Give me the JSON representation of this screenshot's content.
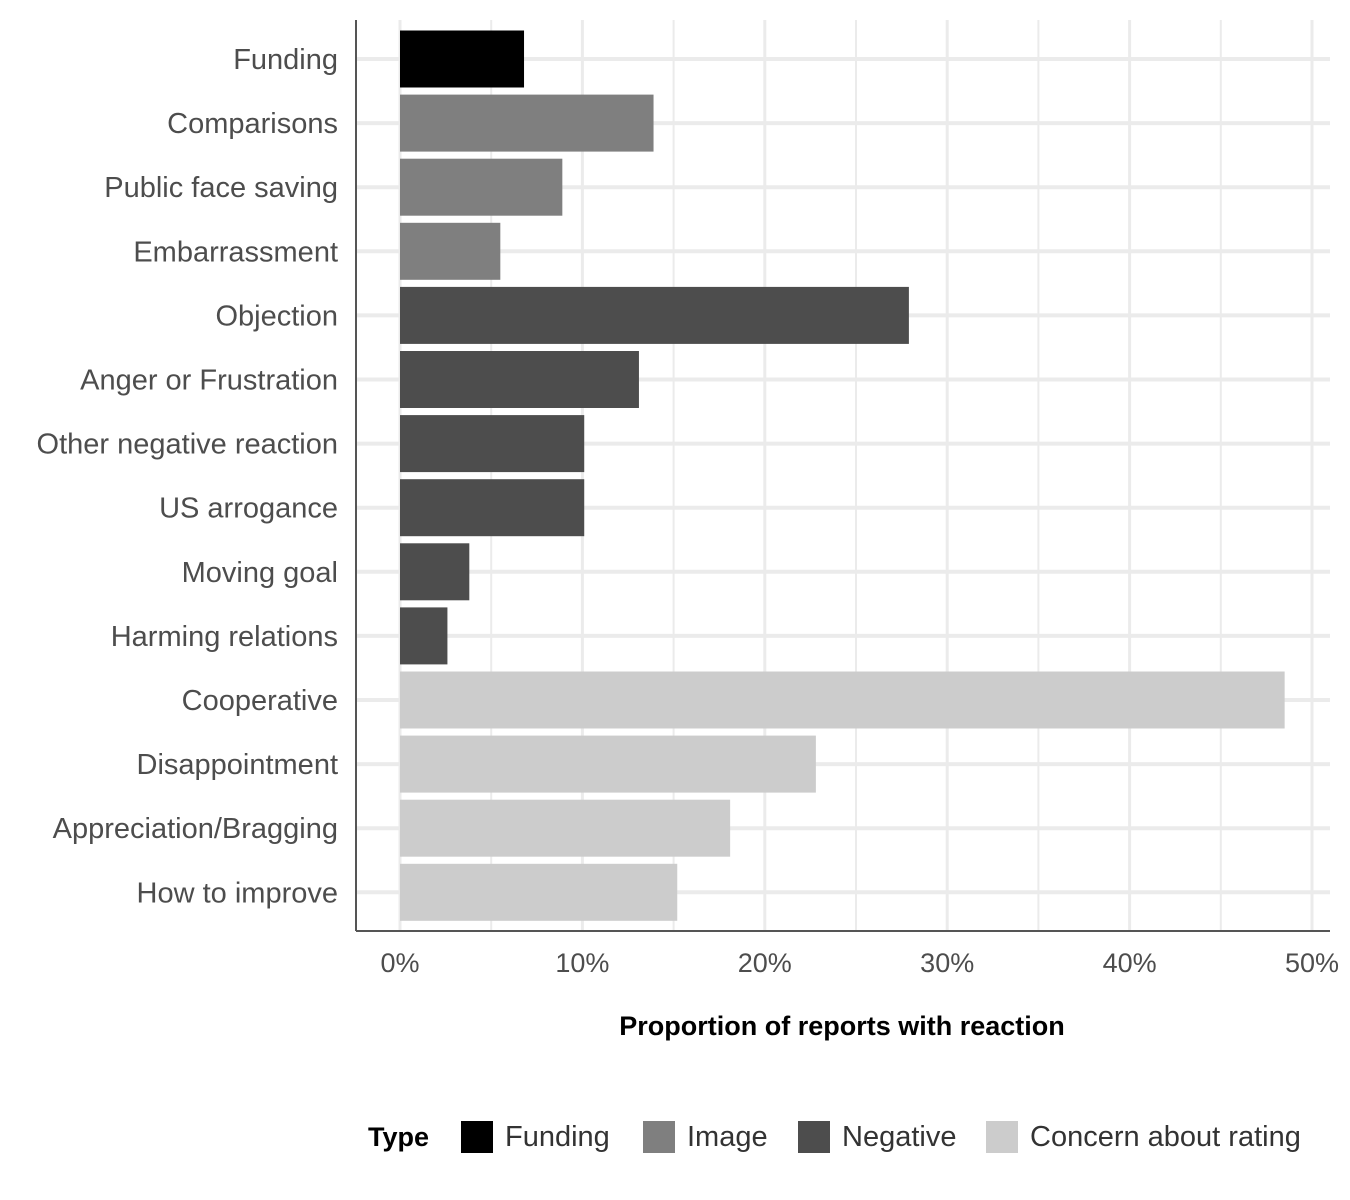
{
  "chart_data": {
    "type": "bar",
    "orientation": "horizontal",
    "title": "",
    "xlabel": "Proportion of reports with reaction",
    "ylabel": "",
    "xlim": [
      0,
      0.5
    ],
    "x_ticks": [
      "0%",
      "10%",
      "20%",
      "30%",
      "40%",
      "50%"
    ],
    "grid": true,
    "legend_position": "bottom",
    "legend_title": "Type",
    "legend": [
      {
        "name": "Funding",
        "color": "#000000"
      },
      {
        "name": "Image",
        "color": "#7f7f7f"
      },
      {
        "name": "Negative",
        "color": "#4d4d4d"
      },
      {
        "name": "Concern about rating",
        "color": "#cccccc"
      }
    ],
    "categories": [
      "Funding",
      "Comparisons",
      "Public face saving",
      "Embarrassment",
      "Objection",
      "Anger or Frustration",
      "Other negative reaction",
      "US arrogance",
      "Moving goal",
      "Harming relations",
      "Cooperative",
      "Disappointment",
      "Appreciation/Bragging",
      "How to improve"
    ],
    "values": [
      0.068,
      0.139,
      0.089,
      0.055,
      0.279,
      0.131,
      0.101,
      0.101,
      0.038,
      0.026,
      0.485,
      0.228,
      0.181,
      0.152
    ],
    "types": [
      "Funding",
      "Image",
      "Image",
      "Image",
      "Negative",
      "Negative",
      "Negative",
      "Negative",
      "Negative",
      "Negative",
      "Concern about rating",
      "Concern about rating",
      "Concern about rating",
      "Concern about rating"
    ]
  }
}
